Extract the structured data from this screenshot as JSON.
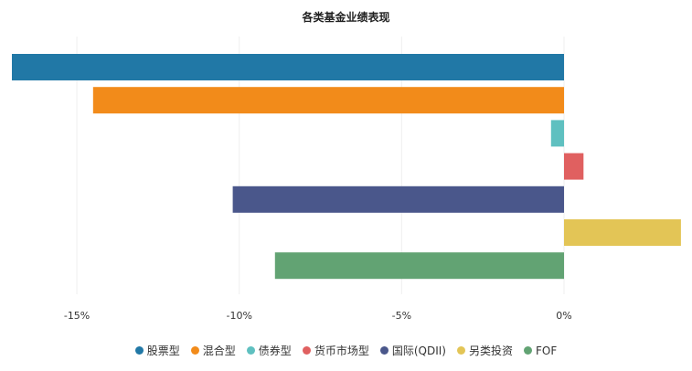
{
  "chart_data": {
    "type": "bar",
    "orientation": "horizontal",
    "title": "各类基金业绩表现",
    "xlabel": "",
    "ylabel": "",
    "x_unit": "%",
    "xlim": [
      -17,
      3.6
    ],
    "xticks": [
      -15,
      -10,
      -5,
      0
    ],
    "xtick_labels": [
      "-15%",
      "-10%",
      "-5%",
      "0%"
    ],
    "grid": true,
    "legend_position": "bottom",
    "series": [
      {
        "name": "股票型",
        "value": -17.0,
        "color": "#2178a6"
      },
      {
        "name": "混合型",
        "value": -14.5,
        "color": "#f28b1a"
      },
      {
        "name": "债券型",
        "value": -0.4,
        "color": "#5fc0c0"
      },
      {
        "name": "货币市场型",
        "value": 0.6,
        "color": "#e06060"
      },
      {
        "name": "国际(QDII)",
        "value": -10.2,
        "color": "#4a578b"
      },
      {
        "name": "另类投资",
        "value": 3.6,
        "color": "#e3c556"
      },
      {
        "name": "FOF",
        "value": -8.9,
        "color": "#62a373"
      }
    ]
  }
}
